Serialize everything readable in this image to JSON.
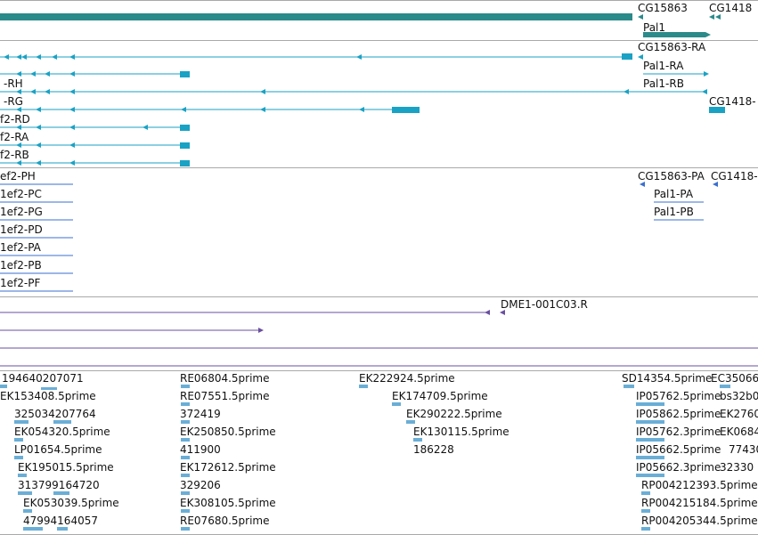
{
  "colors": {
    "gene": "#2b8a8a",
    "transcript": "#1aa2c4",
    "protein": "#3a6fd0",
    "clone": "#6a4fa0",
    "est": "#6aaed6",
    "separator": "#a9a9a9"
  },
  "gene_track": {
    "labels": [
      "CG15863",
      "CG1418",
      "Pal1"
    ]
  },
  "transcript_track": {
    "labels": [
      "CG15863-RA",
      "-RH",
      "Pal1-RA",
      "Pal1-RB",
      "-RG",
      "CG1418-",
      "f2-RD",
      "f2-RA",
      "f2-RB"
    ]
  },
  "protein_track": {
    "labels": [
      "ef2-PH",
      "CG15863-PA",
      "CG1418-",
      "1ef2-PC",
      "Pal1-PA",
      "1ef2-PG",
      "Pal1-PB",
      "1ef2-PD",
      "1ef2-PA",
      "1ef2-PB",
      "1ef2-PF"
    ]
  },
  "clone_track": {
    "labels": [
      "DME1-001C03.R"
    ]
  },
  "est_track": {
    "labels": [
      "194640207071",
      "RE06804.5prime",
      "EK222924.5prime",
      "SD14354.5prime",
      "EC35066",
      "EK153408.5prime",
      "RE07551.5prime",
      "EK174709.5prime",
      "IP05762.5prime",
      "bs32b0",
      "325034207764",
      "372419",
      "EK290222.5prime",
      "IP05862.5prime",
      "EK2760",
      "EK054320.5prime",
      "EK250850.5prime",
      "EK130115.5prime",
      "IP05762.3prime",
      "EK0684",
      "LP01654.5prime",
      "411900",
      "186228",
      "IP05662.5prime",
      "77430",
      "EK195015.5prime",
      "EK172612.5prime",
      "IP05662.3prime",
      "32330",
      "313799164720",
      "329206",
      "RP004212393.5prime",
      "EK053039.5prime",
      "EK308105.5prime",
      "RP004215184.5prime",
      "47994164057",
      "RE07680.5prime",
      "RP004205344.5prime"
    ]
  }
}
